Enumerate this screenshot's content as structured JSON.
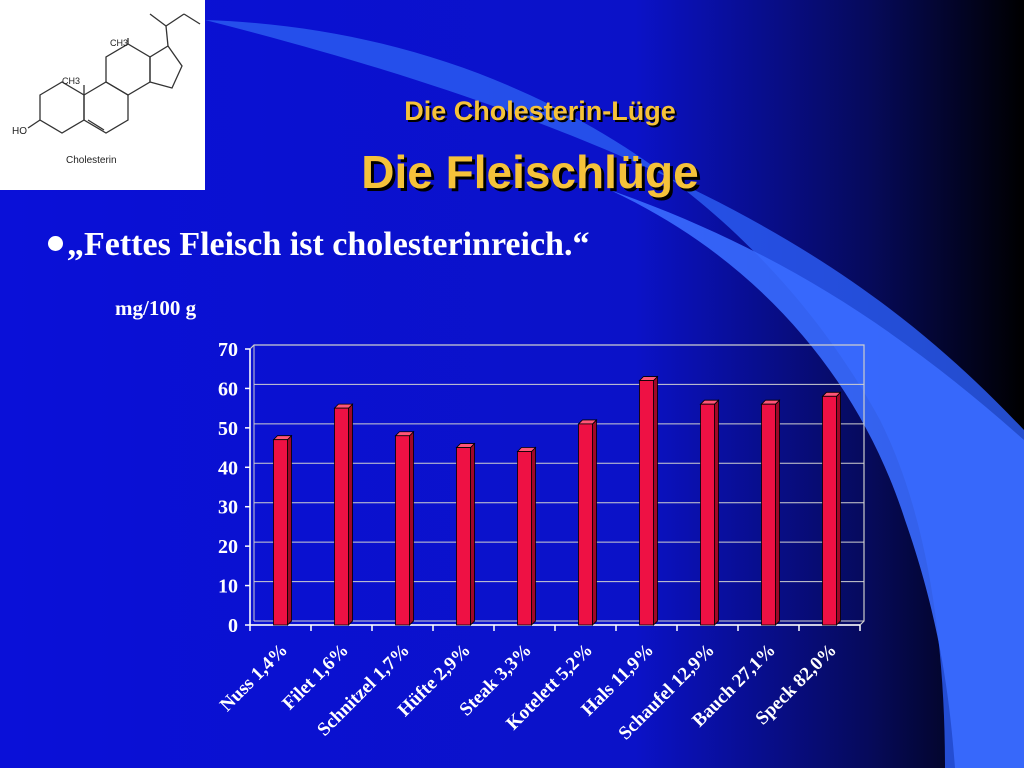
{
  "slide": {
    "subtitle": "Die Cholesterin-Lüge",
    "title": "Die Fleischlüge",
    "bullet": "„Fettes Fleisch ist cholesterinreich.“",
    "molecule": {
      "caption": "Cholesterin",
      "ho_label": "HO",
      "ch3_labels": [
        "CH3",
        "CH3"
      ]
    }
  },
  "colors": {
    "background": "#0a10d8",
    "title": "#f5c23a",
    "bar": "#ee1144",
    "bar_top": "#ff5577",
    "text": "#ffffff"
  },
  "chart_data": {
    "type": "bar",
    "ylabel": "mg/100 g",
    "categories": [
      "Nuss 1,4%",
      "Filet 1,6%",
      "Schnitzel 1,7%",
      "Hüfte 2,9%",
      "Steak 3,3%",
      "Kotelett 5,2%",
      "Hals 11,9%",
      "Schaufel 12,9%",
      "Bauch 27,1%",
      "Speck 82,0%"
    ],
    "values": [
      47,
      55,
      48,
      45,
      44,
      51,
      62,
      56,
      56,
      58
    ],
    "ylim": [
      0,
      70
    ],
    "yticks": [
      0,
      10,
      20,
      30,
      40,
      50,
      60,
      70
    ],
    "grid": true,
    "legend": "none"
  }
}
